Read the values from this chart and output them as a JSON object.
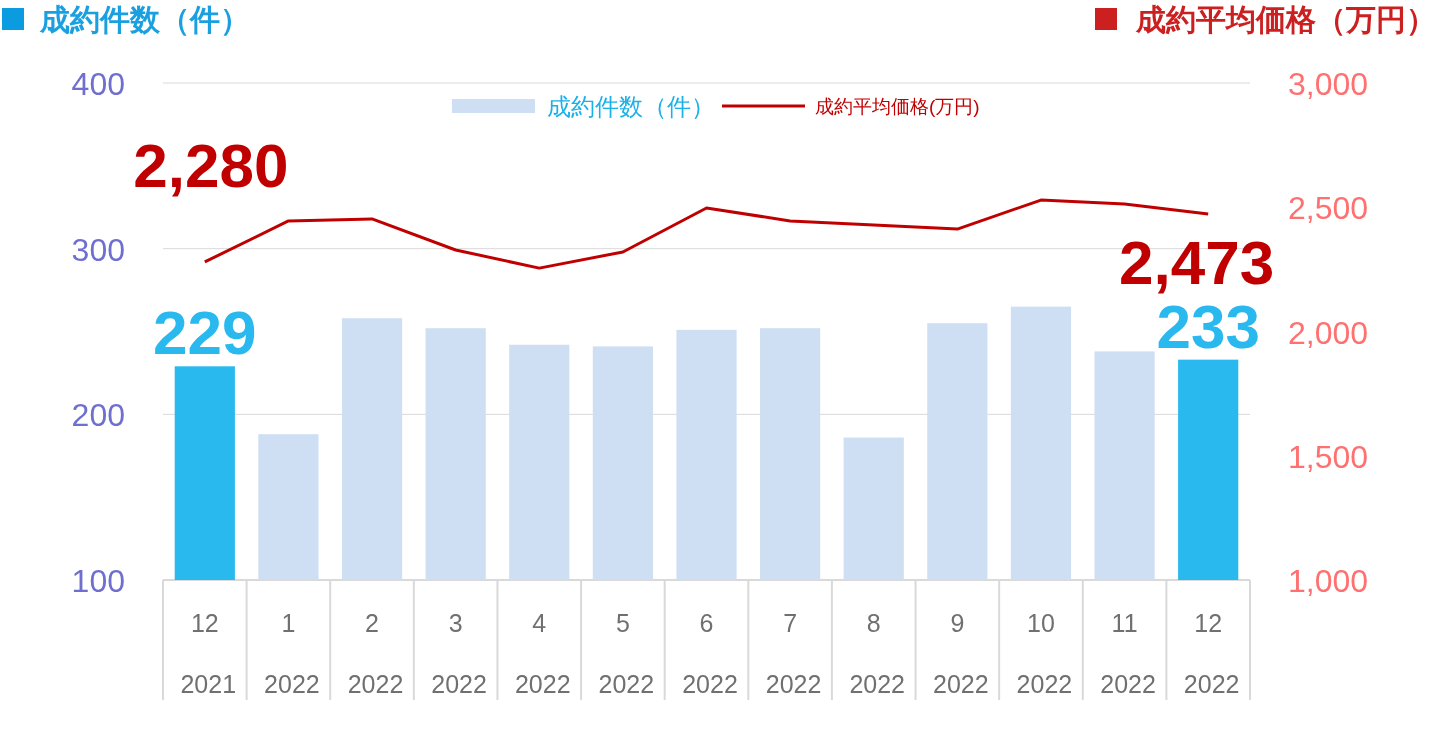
{
  "chart_data": {
    "type": "bar",
    "ylabel": "成約件数（件）",
    "y2label": "成約平均価格（万円）",
    "categories": [
      "12 2021",
      "1 2022",
      "2 2022",
      "3 2022",
      "4 2022",
      "5 2022",
      "6 2022",
      "7 2022",
      "8 2022",
      "9 2022",
      "10 2022",
      "11 2022",
      "12 2022"
    ],
    "series": [
      {
        "name": "成約件数（件）",
        "color": "#cfdff3",
        "colors": [
          "#29b9ee",
          "#cfdff3",
          "#cfdff3",
          "#cfdff3",
          "#cfdff3",
          "#cfdff3",
          "#cfdff3",
          "#cfdff3",
          "#cfdff3",
          "#cfdff3",
          "#cfdff3",
          "#cfdff3",
          "#29b9ee"
        ],
        "values": [
          229,
          188,
          258,
          252,
          242,
          241,
          251,
          252,
          186,
          255,
          265,
          238,
          233
        ],
        "value_labels": [
          "229",
          null,
          null,
          null,
          null,
          null,
          null,
          null,
          null,
          null,
          null,
          null,
          "233"
        ]
      },
      {
        "name": "成約平均価格(万円)",
        "type": "line",
        "axis": "y2",
        "color": "#c00000",
        "values": [
          2280,
          2445,
          2453,
          2328,
          2255,
          2320,
          2497,
          2445,
          2429,
          2412,
          2529,
          2513,
          2473
        ],
        "value_labels": [
          "2,280",
          null,
          null,
          null,
          null,
          null,
          null,
          null,
          null,
          null,
          null,
          null,
          "2,473"
        ]
      }
    ],
    "ylim": [
      100,
      400
    ],
    "yticks": [
      100,
      200,
      300,
      400
    ],
    "y2lim": [
      1000,
      3000
    ],
    "y2ticks": [
      {
        "value": 1000,
        "label": "1,000"
      },
      {
        "value": 1500,
        "label": "1,500"
      },
      {
        "value": 2000,
        "label": "2,000"
      },
      {
        "value": 2500,
        "label": "2,500"
      },
      {
        "value": 3000,
        "label": "3,000"
      }
    ],
    "grid": "y",
    "legend": "top",
    "line_style": "solid",
    "marker": "none"
  }
}
